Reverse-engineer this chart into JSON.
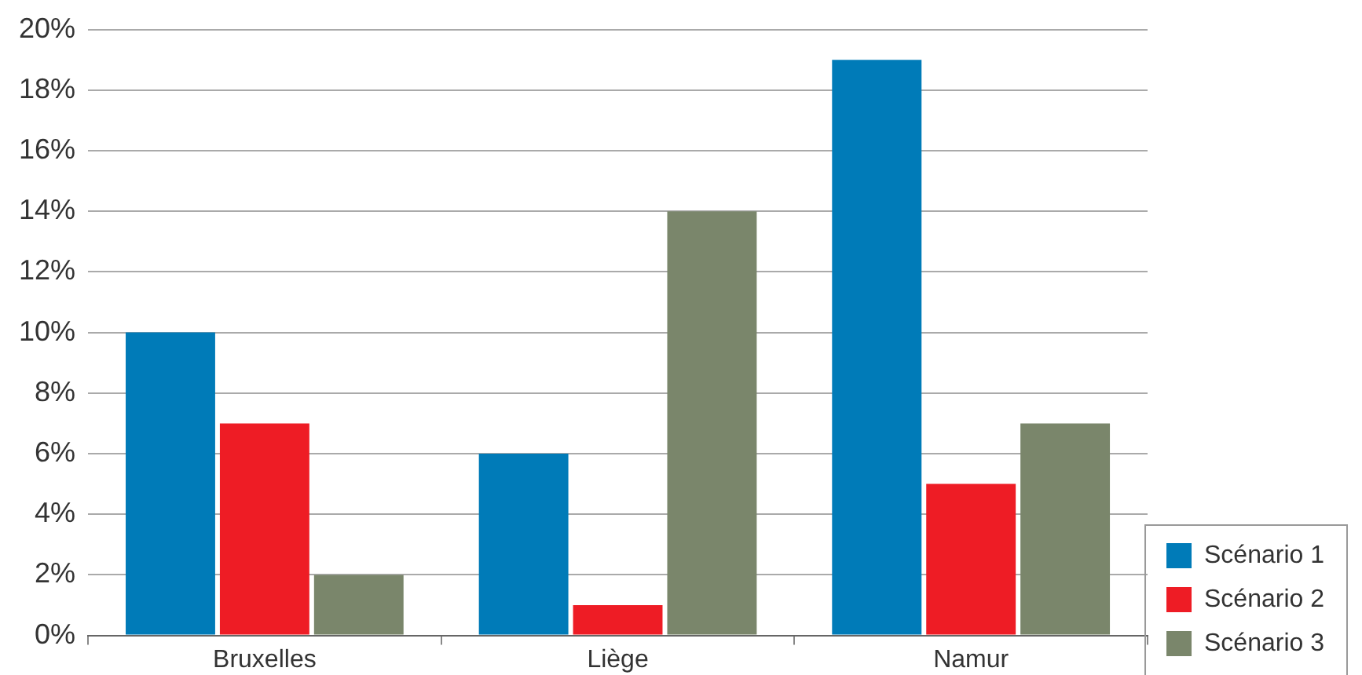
{
  "chart_data": {
    "type": "bar",
    "categories": [
      "Bruxelles",
      "Liège",
      "Namur"
    ],
    "series": [
      {
        "name": "Scénario 1",
        "color": "#007bb8",
        "values": [
          10,
          6,
          19
        ]
      },
      {
        "name": "Scénario 2",
        "color": "#ee1c25",
        "values": [
          7,
          1,
          5
        ]
      },
      {
        "name": "Scénario 3",
        "color": "#7a866b",
        "values": [
          2,
          14,
          7
        ]
      }
    ],
    "ylim": [
      0,
      20
    ],
    "yticks": [
      {
        "value": 0,
        "label": "0%"
      },
      {
        "value": 2,
        "label": "2%"
      },
      {
        "value": 4,
        "label": "4%"
      },
      {
        "value": 6,
        "label": "6%"
      },
      {
        "value": 8,
        "label": "8%"
      },
      {
        "value": 10,
        "label": "10%"
      },
      {
        "value": 12,
        "label": "12%"
      },
      {
        "value": 14,
        "label": "14%"
      },
      {
        "value": 16,
        "label": "16%"
      },
      {
        "value": 18,
        "label": "18%"
      },
      {
        "value": 20,
        "label": "20%"
      }
    ],
    "grid": "y",
    "legend": "bottom right"
  }
}
